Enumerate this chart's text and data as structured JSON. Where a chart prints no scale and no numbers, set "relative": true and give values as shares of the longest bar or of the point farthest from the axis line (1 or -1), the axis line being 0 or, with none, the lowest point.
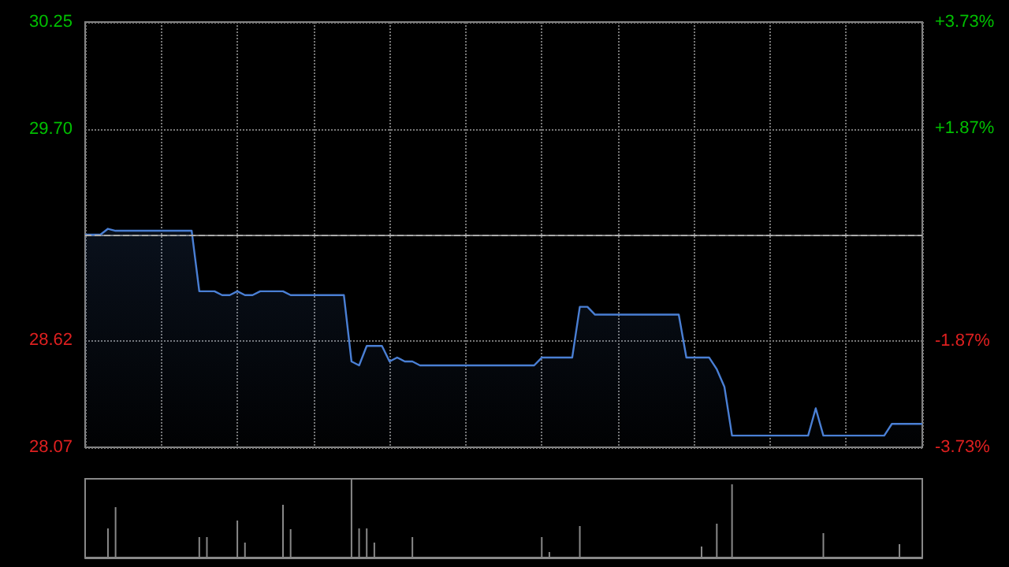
{
  "chart_data": [
    {
      "type": "area",
      "categories": [
        null,
        null,
        null,
        null,
        null,
        null,
        null,
        null,
        null,
        null,
        null,
        null,
        null,
        null,
        null,
        null,
        null,
        null,
        null,
        null,
        null,
        null,
        null,
        null,
        null,
        null,
        null,
        null,
        null,
        null,
        null,
        null,
        null,
        null,
        null,
        null,
        null,
        null,
        null,
        null,
        null,
        null,
        null,
        null,
        null,
        null,
        null,
        null,
        null,
        null,
        null,
        null,
        null,
        null,
        null,
        null,
        null,
        null,
        null,
        null,
        null,
        null,
        null,
        null,
        null,
        null,
        null,
        null,
        null,
        null,
        null,
        null,
        null,
        null,
        null,
        null,
        null,
        null,
        null,
        null,
        null,
        null,
        null,
        null,
        null,
        null,
        null,
        null,
        null,
        null,
        null,
        null,
        null,
        null,
        null,
        null,
        null,
        null,
        null,
        null,
        null,
        null,
        null,
        null,
        null,
        null,
        null,
        null,
        null,
        null,
        null
      ],
      "series": [
        {
          "color": "#4a7fd4",
          "values": [
            29.16,
            29.16,
            29.16,
            29.19,
            29.18,
            29.18,
            29.18,
            29.18,
            29.18,
            29.18,
            29.18,
            29.18,
            29.18,
            29.18,
            29.18,
            28.87,
            28.87,
            28.87,
            28.85,
            28.85,
            28.87,
            28.85,
            28.85,
            28.87,
            28.87,
            28.87,
            28.87,
            28.85,
            28.85,
            28.85,
            28.85,
            28.85,
            28.85,
            28.85,
            28.85,
            28.51,
            28.49,
            28.59,
            28.59,
            28.59,
            28.51,
            28.53,
            28.51,
            28.51,
            28.49,
            28.49,
            28.49,
            28.49,
            28.49,
            28.49,
            28.49,
            28.49,
            28.49,
            28.49,
            28.49,
            28.49,
            28.49,
            28.49,
            28.49,
            28.49,
            28.53,
            28.53,
            28.53,
            28.53,
            28.53,
            28.79,
            28.79,
            28.75,
            28.75,
            28.75,
            28.75,
            28.75,
            28.75,
            28.75,
            28.75,
            28.75,
            28.75,
            28.75,
            28.75,
            28.53,
            28.53,
            28.53,
            28.53,
            28.47,
            28.38,
            28.13,
            28.13,
            28.13,
            28.13,
            28.13,
            28.13,
            28.13,
            28.13,
            28.13,
            28.13,
            28.13,
            28.27,
            28.13,
            28.13,
            28.13,
            28.13,
            28.13,
            28.13,
            28.13,
            28.13,
            28.13,
            28.19,
            28.19,
            28.19,
            28.19,
            28.19
          ]
        }
      ],
      "ylim": [
        28.07,
        30.25
      ],
      "yticks": [
        28.07,
        28.62,
        {
          "value": 29.7,
          "label": "29.70"
        },
        30.25
      ],
      "y2lim": [
        -3.73,
        3.73
      ],
      "y2ticks": [
        {
          "value": -3.73,
          "label": "-3.73%"
        },
        {
          "value": -1.87,
          "label": "-1.87%"
        },
        {
          "value": 1.87,
          "label": "+1.87%"
        },
        {
          "value": 3.73,
          "label": "+3.73%"
        }
      ],
      "ref_lines": [
        {
          "axis": "y",
          "value": 29.16,
          "line_style": "dashed",
          "color": "#aaaaaa"
        }
      ],
      "grid": true,
      "line_style": "solid"
    },
    {
      "type": "bar",
      "relative": true,
      "categories": [
        null,
        null,
        null,
        null,
        null,
        null,
        null,
        null,
        null,
        null,
        null,
        null,
        null,
        null,
        null,
        null,
        null,
        null,
        null,
        null,
        null,
        null,
        null,
        null,
        null,
        null,
        null,
        null,
        null,
        null,
        null,
        null,
        null,
        null,
        null,
        null,
        null,
        null,
        null,
        null,
        null,
        null,
        null,
        null,
        null,
        null,
        null,
        null,
        null,
        null,
        null,
        null,
        null,
        null,
        null,
        null,
        null,
        null,
        null,
        null,
        null,
        null,
        null,
        null,
        null,
        null,
        null,
        null,
        null,
        null,
        null,
        null,
        null,
        null,
        null,
        null,
        null,
        null,
        null,
        null,
        null,
        null,
        null,
        null,
        null,
        null,
        null,
        null,
        null,
        null,
        null,
        null,
        null,
        null,
        null,
        null,
        null,
        null,
        null,
        null,
        null,
        null,
        null,
        null,
        null,
        null,
        null,
        null,
        null,
        null,
        null
      ],
      "color": "#888888",
      "values": [
        null,
        null,
        null,
        0.37,
        0.64,
        null,
        null,
        null,
        null,
        null,
        null,
        null,
        null,
        null,
        null,
        0.26,
        0.26,
        null,
        null,
        null,
        0.47,
        0.19,
        null,
        null,
        null,
        null,
        0.67,
        0.36,
        null,
        null,
        null,
        null,
        null,
        null,
        null,
        1,
        0.37,
        0.37,
        0.19,
        null,
        null,
        null,
        null,
        0.26,
        null,
        null,
        null,
        null,
        null,
        null,
        null,
        null,
        null,
        null,
        null,
        null,
        null,
        null,
        null,
        null,
        0.26,
        0.07,
        null,
        null,
        null,
        0.4,
        null,
        null,
        null,
        null,
        null,
        null,
        null,
        null,
        null,
        null,
        null,
        null,
        null,
        null,
        null,
        0.14,
        null,
        0.43,
        null,
        0.93,
        null,
        null,
        null,
        null,
        null,
        null,
        null,
        null,
        null,
        null,
        null,
        0.31,
        null,
        null,
        null,
        null,
        null,
        null,
        null,
        null,
        null,
        0.17,
        null,
        null,
        null
      ],
      "grid": false
    }
  ]
}
